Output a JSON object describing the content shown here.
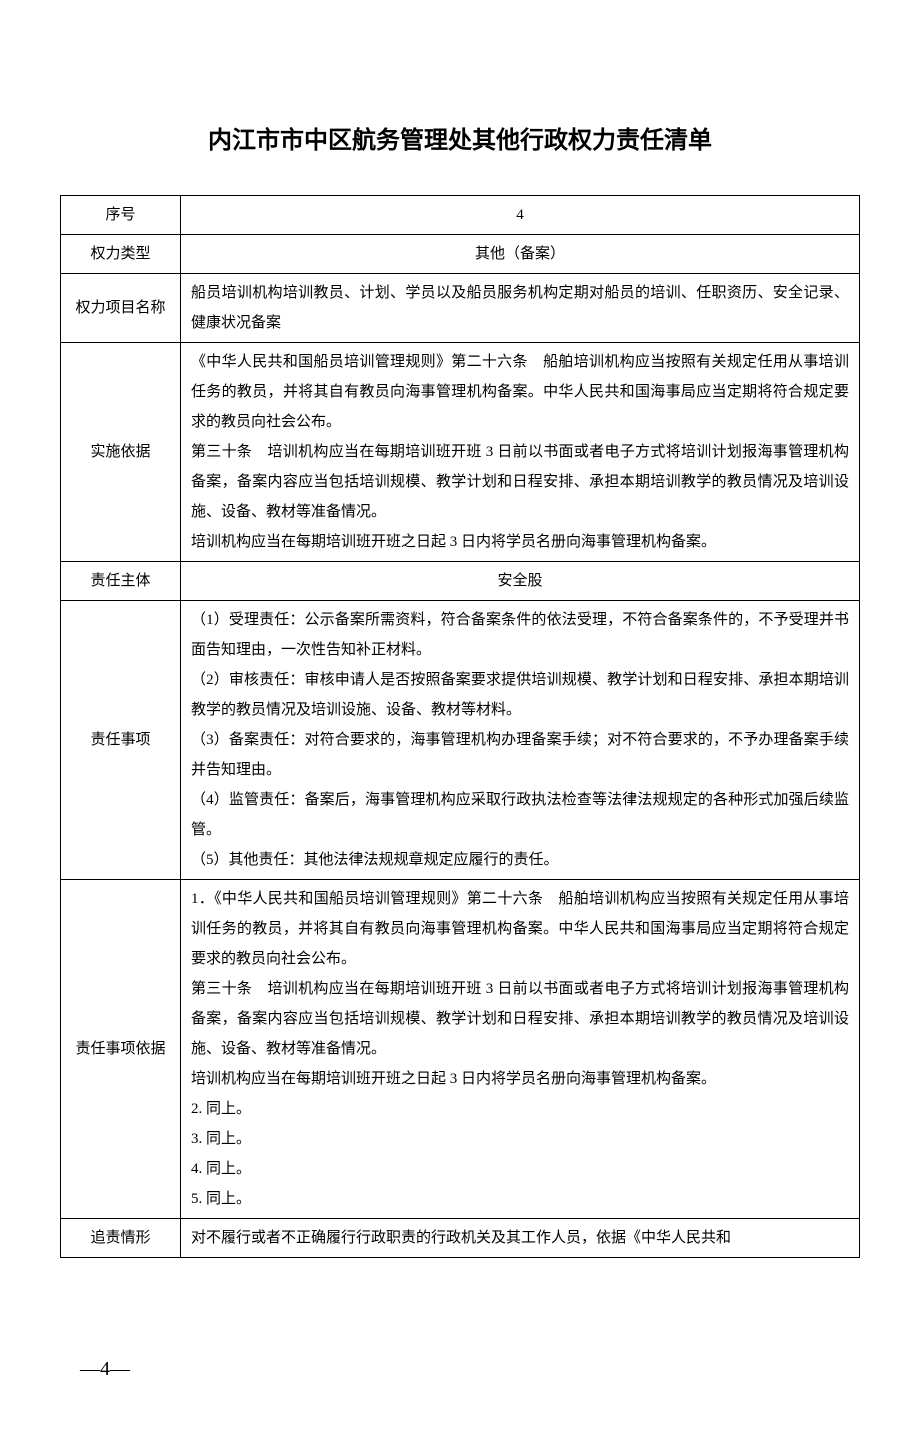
{
  "title": "内江市市中区航务管理处其他行政权力责任清单",
  "rows": {
    "serial_label": "序号",
    "serial_value": "4",
    "type_label": "权力类型",
    "type_value": "其他（备案）",
    "name_label": "权力项目名称",
    "name_value": "船员培训机构培训教员、计划、学员以及船员服务机构定期对船员的培训、任职资历、安全记录、健康状况备案",
    "basis_label": "实施依据",
    "basis_value": "《中华人民共和国船员培训管理规则》第二十六条　船舶培训机构应当按照有关规定任用从事培训任务的教员，并将其自有教员向海事管理机构备案。中华人民共和国海事局应当定期将符合规定要求的教员向社会公布。\n第三十条　培训机构应当在每期培训班开班 3 日前以书面或者电子方式将培训计划报海事管理机构备案，备案内容应当包括培训规模、教学计划和日程安排、承担本期培训教学的教员情况及培训设施、设备、教材等准备情况。\n培训机构应当在每期培训班开班之日起 3 日内将学员名册向海事管理机构备案。",
    "subject_label": "责任主体",
    "subject_value": "安全股",
    "duty_label": "责任事项",
    "duty_value": "（1）受理责任：公示备案所需资料，符合备案条件的依法受理，不符合备案条件的，不予受理并书面告知理由，一次性告知补正材料。\n（2）审核责任：审核申请人是否按照备案要求提供培训规模、教学计划和日程安排、承担本期培训教学的教员情况及培训设施、设备、教材等材料。\n（3）备案责任：对符合要求的，海事管理机构办理备案手续；对不符合要求的，不予办理备案手续并告知理由。\n（4）监管责任：备案后，海事管理机构应采取行政执法检查等法律法规规定的各种形式加强后续监管。\n（5）其他责任：其他法律法规规章规定应履行的责任。",
    "duty_basis_label": "责任事项依据",
    "duty_basis_value": "1．《中华人民共和国船员培训管理规则》第二十六条　船舶培训机构应当按照有关规定任用从事培训任务的教员，并将其自有教员向海事管理机构备案。中华人民共和国海事局应当定期将符合规定要求的教员向社会公布。\n第三十条　培训机构应当在每期培训班开班 3 日前以书面或者电子方式将培训计划报海事管理机构备案，备案内容应当包括培训规模、教学计划和日程安排、承担本期培训教学的教员情况及培训设施、设备、教材等准备情况。\n培训机构应当在每期培训班开班之日起 3 日内将学员名册向海事管理机构备案。\n2. 同上。\n3. 同上。\n4. 同上。\n5. 同上。",
    "accountability_label": "追责情形",
    "accountability_value": "对不履行或者不正确履行行政职责的行政机关及其工作人员，依据《中华人民共和"
  },
  "page_number": "—4—"
}
